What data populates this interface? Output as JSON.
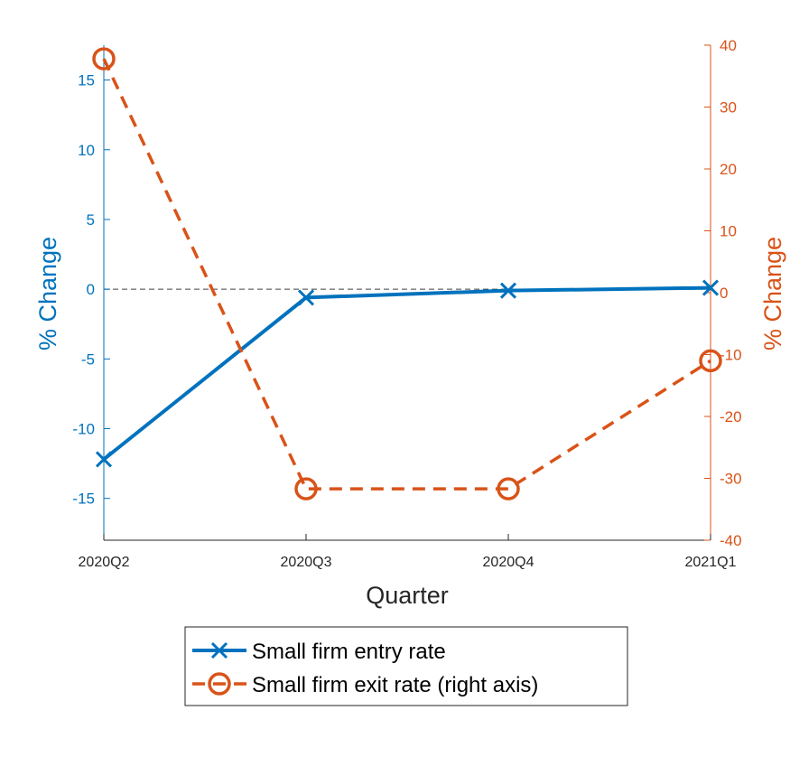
{
  "chart_data": {
    "type": "line",
    "xlabel": "Quarter",
    "ylabel_left": "% Change",
    "ylabel_right": "% Change",
    "categories": [
      "2020Q2",
      "2020Q3",
      "2020Q4",
      "2021Q1"
    ],
    "ylim_left": [
      -18,
      17.5
    ],
    "ylim_right": [
      -40,
      40
    ],
    "yticks_left": [
      -15,
      -10,
      -5,
      0,
      5,
      10,
      15
    ],
    "yticks_right": [
      -40,
      -30,
      -20,
      -10,
      0,
      10,
      20,
      30,
      40
    ],
    "reference_line": 0,
    "grid": false,
    "legend_position": "bottom",
    "series": [
      {
        "name": "Small firm entry rate",
        "axis": "left",
        "values": [
          -12.2,
          -0.6,
          -0.1,
          0.1
        ],
        "color": "#0072BD",
        "line_style": "solid",
        "marker": "x"
      },
      {
        "name": "Small firm exit rate (right axis)",
        "axis": "right",
        "values": [
          37.8,
          -31.7,
          -31.7,
          -11.0
        ],
        "color": "#D95319",
        "line_style": "dashed",
        "marker": "o"
      }
    ]
  }
}
